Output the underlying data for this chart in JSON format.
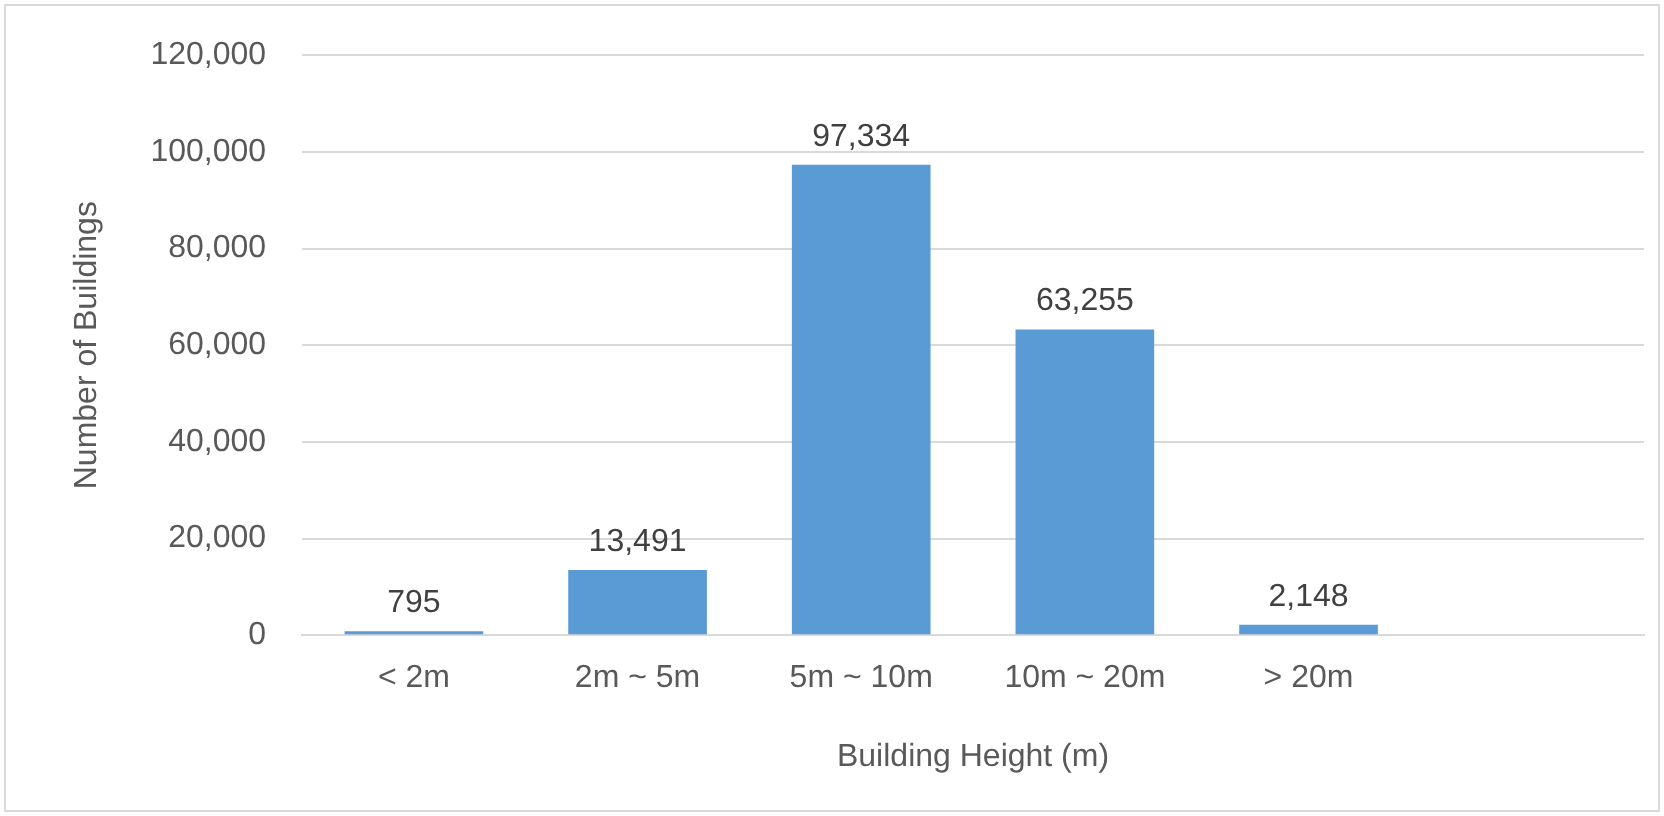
{
  "chart_data": {
    "type": "bar",
    "xlabel": "Building Height (m)",
    "ylabel": "Number of Buildings",
    "categories": [
      "< 2m",
      "2m ~ 5m",
      "5m ~ 10m",
      "10m ~ 20m",
      "> 20m",
      null
    ],
    "values": [
      795,
      13491,
      97334,
      63255,
      2148,
      null
    ],
    "color": "#5b9bd5",
    "ylim": [
      0,
      120000
    ],
    "yticks": [
      {
        "value": 0,
        "label": "0"
      },
      {
        "value": 20000,
        "label": "20,000"
      },
      {
        "value": 40000,
        "label": "40,000"
      },
      {
        "value": 60000,
        "label": "60,000"
      },
      {
        "value": 80000,
        "label": "80,000"
      },
      {
        "value": 100000,
        "label": "100,000"
      },
      {
        "value": 120000,
        "label": "120,000"
      }
    ],
    "value_labels": [
      "795",
      "13,491",
      "97,334",
      "63,255",
      "2,148",
      null
    ],
    "grid": "y",
    "legend": false
  }
}
